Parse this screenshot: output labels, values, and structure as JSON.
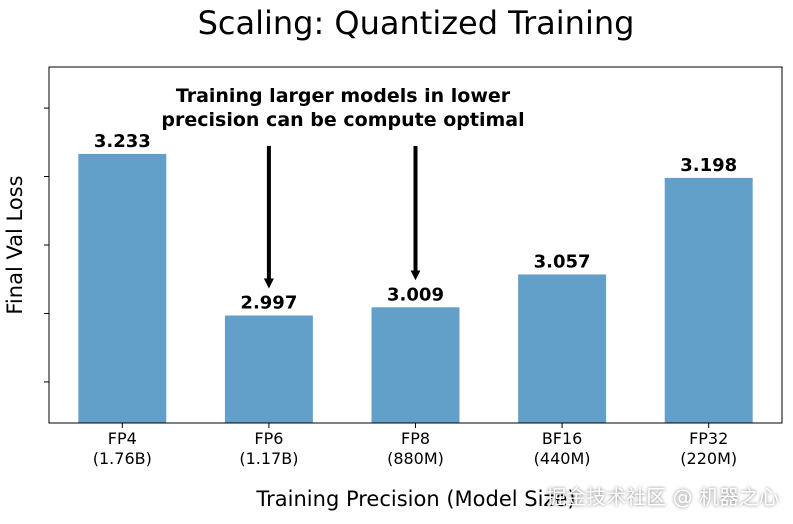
{
  "chart_data": {
    "type": "bar",
    "title": "Scaling: Quantized Training",
    "xlabel": "Training Precision (Model Size)",
    "ylabel": "Final Val Loss",
    "categories": [
      "FP4\n(1.76B)",
      "FP6\n(1.17B)",
      "FP8\n(880M)",
      "BF16\n(440M)",
      "FP32\n(220M)"
    ],
    "values": [
      3.233,
      2.997,
      3.009,
      3.057,
      3.198
    ],
    "value_labels": [
      "3.233",
      "2.997",
      "3.009",
      "3.057",
      "3.198"
    ],
    "ylim": [
      2.84,
      3.36
    ],
    "annotation": {
      "text_lines": [
        "Training larger models in lower",
        "precision can be compute optimal"
      ],
      "arrow_targets": [
        "FP6\n(1.17B)",
        "FP8\n(880M)"
      ]
    },
    "grid": false,
    "bar_color": "#62a0ca"
  },
  "watermark": "掘金技术社区 @ 机器之心"
}
